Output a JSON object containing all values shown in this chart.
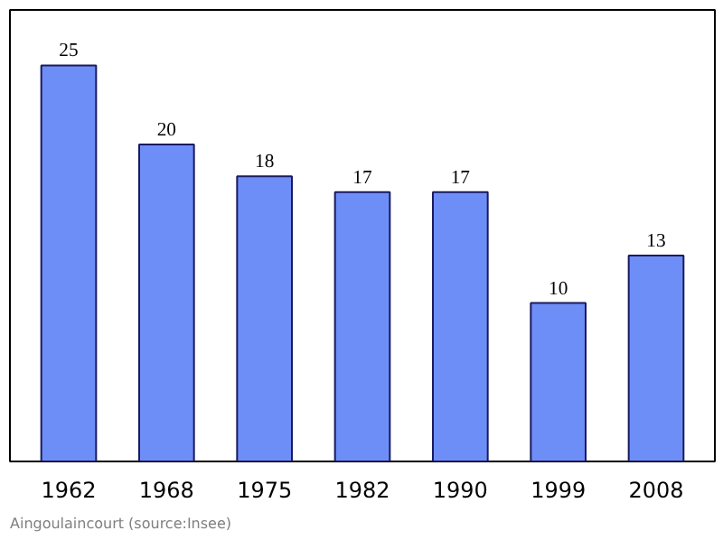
{
  "chart_data": {
    "type": "bar",
    "categories": [
      "1962",
      "1968",
      "1975",
      "1982",
      "1990",
      "1999",
      "2008"
    ],
    "values": [
      25,
      20,
      18,
      17,
      17,
      10,
      13
    ],
    "color": "#6e8ef7",
    "data_labels": true,
    "grid": false,
    "annotations": [
      "Aingoulaincourt    (source:Insee)"
    ]
  }
}
